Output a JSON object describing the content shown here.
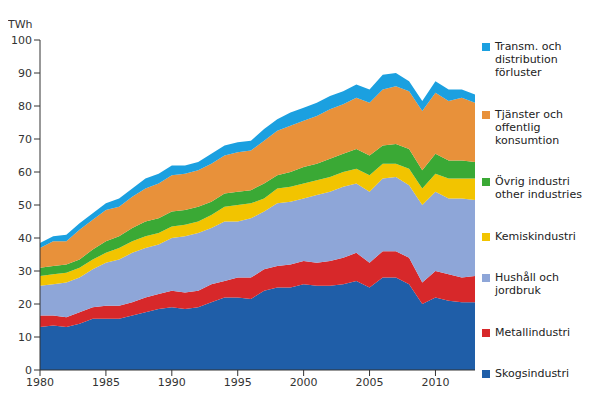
{
  "chart_data": {
    "type": "area",
    "stacked": true,
    "grid": false,
    "legend": "right",
    "y_label": "TWh",
    "x": [
      1980,
      1981,
      1982,
      1983,
      1984,
      1985,
      1986,
      1987,
      1988,
      1989,
      1990,
      1991,
      1992,
      1993,
      1994,
      1995,
      1996,
      1997,
      1998,
      1999,
      2000,
      2001,
      2002,
      2003,
      2004,
      2005,
      2006,
      2007,
      2008,
      2009,
      2010,
      2011,
      2012,
      2013
    ],
    "xlim": [
      1980,
      2013
    ],
    "xticks": [
      1980,
      1985,
      1990,
      1995,
      2000,
      2005,
      2010
    ],
    "ylim": [
      0,
      100
    ],
    "yticks": [
      0,
      10,
      20,
      30,
      40,
      50,
      60,
      70,
      80,
      90,
      100
    ],
    "series": [
      {
        "name": "Skogsindustri",
        "color": "#1f5ea8",
        "values": [
          13,
          13.5,
          13,
          14,
          15.5,
          15.5,
          15.5,
          16.5,
          17.5,
          18.5,
          19,
          18.5,
          19,
          20.5,
          22,
          22,
          21.5,
          24,
          25,
          25,
          26,
          25.5,
          25.5,
          26,
          27,
          25,
          28,
          28,
          26,
          20,
          22,
          21,
          20.5,
          20.5
        ]
      },
      {
        "name": "Metallindustri",
        "color": "#d7282a",
        "values": [
          3.5,
          3,
          3,
          3.5,
          3.5,
          4,
          4,
          4,
          4.5,
          4.5,
          5,
          5,
          5,
          5.5,
          5,
          6,
          6.5,
          6.5,
          6.5,
          7,
          7,
          7,
          7.5,
          8,
          8.5,
          7.5,
          8,
          8,
          8,
          6.5,
          8,
          8,
          7.5,
          8
        ]
      },
      {
        "name": "Hushåll och jordbruk",
        "color": "#8ea6d8",
        "values": [
          9,
          9.5,
          10.5,
          10.5,
          11.5,
          13,
          14,
          15,
          15,
          15,
          16,
          17,
          17.5,
          17,
          18,
          17,
          18,
          17.5,
          19,
          19,
          19,
          20.5,
          21,
          21.5,
          21,
          21.5,
          22,
          22.5,
          22,
          23.5,
          24,
          23,
          24,
          23
        ]
      },
      {
        "name": "Kemiskindustri",
        "color": "#f2c400",
        "values": [
          3,
          3,
          3,
          3,
          3,
          3,
          3.5,
          3.5,
          3.5,
          3.5,
          3.5,
          3.5,
          3.5,
          4,
          4.5,
          5,
          4.5,
          4,
          4.5,
          4.5,
          4.5,
          4.5,
          4.5,
          4.5,
          4.5,
          5,
          4.5,
          4,
          5,
          5,
          5.5,
          6,
          6,
          6.5
        ]
      },
      {
        "name": "Övrig industri other industries",
        "color": "#3aa935",
        "values": [
          2.5,
          2.5,
          2.5,
          2.5,
          3,
          3.5,
          3.5,
          4,
          4.5,
          4.5,
          4.5,
          4.5,
          4.5,
          4,
          4,
          4,
          4,
          4.5,
          4,
          4.5,
          5,
          5,
          5.5,
          5.5,
          6,
          6,
          5.5,
          6,
          6,
          5.5,
          6,
          5.5,
          5.5,
          5
        ]
      },
      {
        "name": "Tjänster och offentlig konsumtion",
        "color": "#e8913a",
        "values": [
          6,
          7.5,
          7,
          9,
          9,
          9.5,
          9,
          9.5,
          10,
          10.5,
          11,
          11,
          11,
          11.5,
          11.5,
          12,
          12,
          13,
          13.5,
          14,
          14,
          14.5,
          15,
          15,
          15.5,
          16,
          17,
          17.5,
          17.5,
          18,
          18.5,
          18,
          19,
          18
        ]
      },
      {
        "name": "Transm. och distribution förluster",
        "color": "#1ba0e0",
        "values": [
          1.5,
          1.5,
          2,
          2,
          2,
          2,
          2.5,
          2.5,
          3,
          3,
          3,
          2.5,
          2.5,
          3,
          3,
          3,
          3,
          3.5,
          3.5,
          4,
          4,
          4,
          4,
          4,
          4,
          4,
          4.5,
          4,
          3,
          3,
          3.5,
          3.5,
          2.5,
          2.5
        ]
      }
    ]
  }
}
